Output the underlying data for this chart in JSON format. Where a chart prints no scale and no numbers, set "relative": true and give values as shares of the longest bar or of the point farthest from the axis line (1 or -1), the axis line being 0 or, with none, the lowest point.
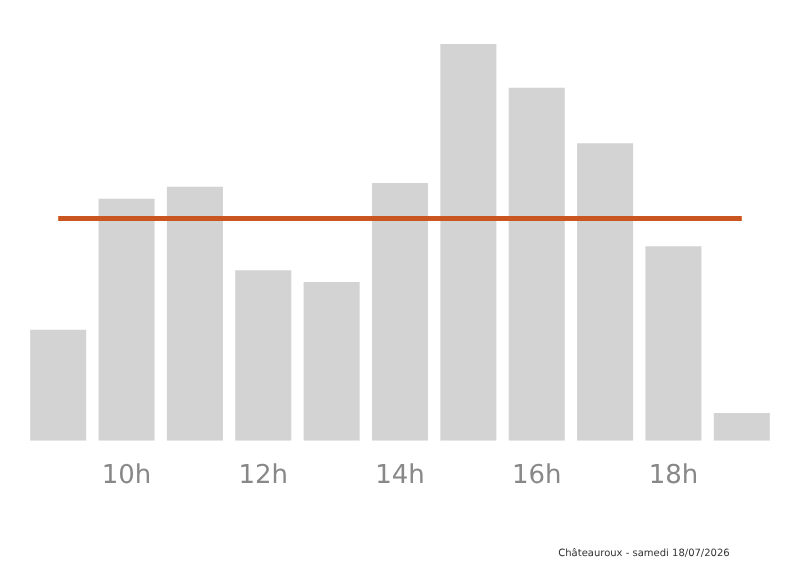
{
  "chart_data": {
    "type": "bar",
    "relative": true,
    "categories": [
      null,
      "10h",
      null,
      "12h",
      null,
      "14h",
      null,
      "16h",
      null,
      "18h",
      null
    ],
    "values": [
      0.28,
      0.61,
      0.64,
      0.43,
      0.4,
      0.65,
      1,
      0.89,
      0.75,
      0.49,
      0.07
    ],
    "color": "#d3d3d3",
    "ref_lines": [
      {
        "axis": "y",
        "value": 0.56,
        "color": "#c8561e"
      }
    ],
    "annotations": [
      "Châteauroux - samedi 18/07/2026"
    ],
    "grid": false,
    "legend": false
  }
}
